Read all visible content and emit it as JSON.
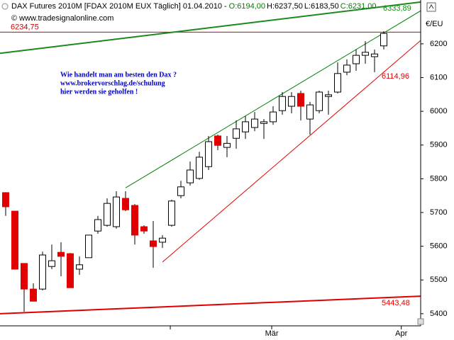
{
  "chart_data": {
    "type": "candlestick",
    "title": "DAX Futures 2010M [FDAX 2010M EUX  Täglich] 01.04.2010 -",
    "header_ohlc": [
      {
        "text": "O:6194,00",
        "color": "#008000"
      },
      {
        "text": "H:6237,50",
        "color": "#000000"
      },
      {
        "text": "L:6183,50",
        "color": "#000000"
      },
      {
        "text": "C:6231,00",
        "color": "#008000"
      }
    ],
    "watermark": "© www.tradesignalonline.com",
    "currency": "€/EU",
    "annotation": [
      "Wie handelt man am besten den Dax ?",
      "www.brokervorschlag.de/schulung",
      "hier werden sie geholfen !"
    ],
    "up_color": "#ffffff",
    "down_color": "#e00000",
    "open": [
      5759,
      5704,
      5549,
      5473,
      5473,
      5540,
      5582,
      5578,
      5532,
      5566,
      5645,
      5662,
      5658,
      5742,
      5721,
      5658,
      5616,
      5612,
      5662,
      5750,
      5788,
      5801,
      5836,
      5927,
      5893,
      5920,
      5939,
      5952,
      5964,
      5969,
      6002,
      6015,
      6053,
      5977,
      6002,
      6044,
      6057,
      6116,
      6141,
      6166,
      6162,
      6194
    ],
    "high": [
      5760,
      5704,
      5549,
      5490,
      5584,
      5605,
      5612,
      5580,
      5570,
      5633,
      5690,
      5742,
      5763,
      5763,
      5725,
      5662,
      5675,
      5633,
      5738,
      5794,
      5851,
      5880,
      5927,
      5931,
      5927,
      5973,
      5986,
      5998,
      5977,
      6015,
      6057,
      6057,
      6061,
      6028,
      6061,
      6061,
      6145,
      6154,
      6183,
      6208,
      6183,
      6237.5
    ],
    "low": [
      5690,
      5532,
      5406,
      5437,
      5469,
      5532,
      5511,
      5477,
      5515,
      5566,
      5637,
      5658,
      5652,
      5704,
      5605,
      5637,
      5536,
      5595,
      5658,
      5742,
      5780,
      5797,
      5826,
      5885,
      5864,
      5889,
      5918,
      5941,
      5918,
      5960,
      5990,
      5994,
      5973,
      5931,
      5994,
      5990,
      6053,
      6107,
      6120,
      6141,
      6116,
      6183.5
    ],
    "close": [
      5717,
      5532,
      5473,
      5437,
      5574,
      5557,
      5570,
      5477,
      5545,
      5633,
      5679,
      5727,
      5746,
      5708,
      5633,
      5645,
      5599,
      5624,
      5734,
      5776,
      5826,
      5864,
      5910,
      5899,
      5905,
      5948,
      5969,
      5977,
      5969,
      5998,
      6044,
      6044,
      6015,
      6019,
      6057,
      6049,
      6112,
      6137,
      6166,
      6175,
      6170,
      6231
    ],
    "xlim": [
      -0.615,
      45
    ],
    "ylim": [
      5364,
      6330
    ],
    "yticks": [
      5400,
      5500,
      5600,
      5700,
      5800,
      5900,
      6000,
      6100,
      6200
    ],
    "xticks": [
      {
        "value": 17.85,
        "label": null
      },
      {
        "value": 28.85,
        "label": "Mär"
      },
      {
        "value": 42.9,
        "label": "Apr"
      }
    ],
    "hlines": [
      {
        "value": 6234.75,
        "label": "6234,75",
        "color": "#d00000"
      }
    ],
    "trend_lines": [
      {
        "x": [
          -0.615,
          45
        ],
        "y": [
          6172,
          6324
        ],
        "color": "#1a8a1a",
        "width": 2,
        "label": "6333,89"
      },
      {
        "x": [
          13,
          45
        ],
        "y": [
          5773,
          6298
        ],
        "color": "#008000",
        "width": 1,
        "label": null
      },
      {
        "x": [
          17,
          45
        ],
        "y": [
          5553,
          6210
        ],
        "color": "#e00000",
        "width": 1,
        "label": "6114,96"
      },
      {
        "x": [
          -0.615,
          45
        ],
        "y": [
          5400,
          5452
        ],
        "color": "#e00000",
        "width": 2,
        "label": "5443,48"
      }
    ]
  }
}
